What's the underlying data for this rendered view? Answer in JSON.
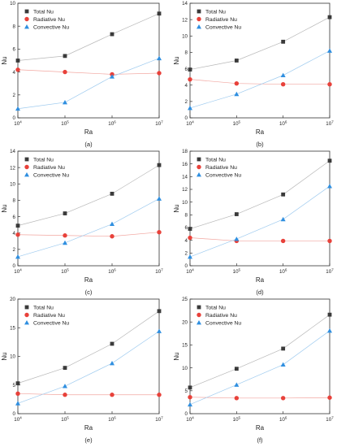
{
  "colors": {
    "total": "#3a3a3a",
    "radiative": "#e8413a",
    "convective": "#2f8fe0",
    "axis": "#333333",
    "guide_total": "#b8b8b8",
    "guide_radiative": "#f2a6a0",
    "guide_convective": "#9fcbef"
  },
  "chart_data": [
    {
      "type": "line",
      "panel_label": "(a)",
      "xlabel": "Ra",
      "ylabel": "Nu",
      "xscale": "log",
      "xlim": [
        10000,
        10000000
      ],
      "ylim": [
        0,
        10
      ],
      "xticks": [
        10000,
        100000,
        1000000,
        10000000
      ],
      "xticklabels": [
        {
          "b": "10",
          "e": "4"
        },
        {
          "b": "10",
          "e": "5"
        },
        {
          "b": "10",
          "e": "6"
        },
        {
          "b": "10",
          "e": "7"
        }
      ],
      "yticks": [
        0,
        2,
        4,
        6,
        8,
        10
      ],
      "x": [
        10000,
        100000,
        1000000,
        10000000
      ],
      "series": [
        {
          "name": "Total Nu",
          "values": [
            5.0,
            5.4,
            7.3,
            9.1
          ]
        },
        {
          "name": "Radiative Nu",
          "values": [
            4.2,
            4.0,
            3.8,
            3.9
          ]
        },
        {
          "name": "Convective Nu",
          "values": [
            0.8,
            1.35,
            3.6,
            5.2
          ]
        }
      ],
      "legend": "top-left"
    },
    {
      "type": "line",
      "panel_label": "(b)",
      "xlabel": "Ra",
      "ylabel": "Nu",
      "xscale": "log",
      "xlim": [
        10000,
        10000000
      ],
      "ylim": [
        0,
        14
      ],
      "xticks": [
        10000,
        100000,
        1000000,
        10000000
      ],
      "xticklabels": [
        {
          "b": "10",
          "e": "4"
        },
        {
          "b": "10",
          "e": "5"
        },
        {
          "b": "10",
          "e": "6"
        },
        {
          "b": "10",
          "e": "7"
        }
      ],
      "yticks": [
        0,
        2,
        4,
        6,
        8,
        10,
        12,
        14
      ],
      "x": [
        10000,
        100000,
        1000000,
        10000000
      ],
      "series": [
        {
          "name": "Total Nu",
          "values": [
            5.9,
            7.0,
            9.3,
            12.3
          ]
        },
        {
          "name": "Radiative Nu",
          "values": [
            4.7,
            4.2,
            4.1,
            4.1
          ]
        },
        {
          "name": "Convective Nu",
          "values": [
            1.2,
            2.9,
            5.2,
            8.2
          ]
        }
      ],
      "legend": "top-left"
    },
    {
      "type": "line",
      "panel_label": "(c)",
      "xlabel": "Ra",
      "ylabel": "Nu",
      "xscale": "log",
      "xlim": [
        10000,
        10000000
      ],
      "ylim": [
        0,
        14
      ],
      "xticks": [
        10000,
        100000,
        1000000,
        10000000
      ],
      "xticklabels": [
        {
          "b": "10",
          "e": "4"
        },
        {
          "b": "10",
          "e": "5"
        },
        {
          "b": "10",
          "e": "6"
        },
        {
          "b": "10",
          "e": "7"
        }
      ],
      "yticks": [
        0,
        2,
        4,
        6,
        8,
        10,
        12,
        14
      ],
      "x": [
        10000,
        100000,
        1000000,
        10000000
      ],
      "series": [
        {
          "name": "Total Nu",
          "values": [
            4.9,
            6.4,
            8.8,
            12.3
          ]
        },
        {
          "name": "Radiative Nu",
          "values": [
            3.8,
            3.7,
            3.6,
            4.1
          ]
        },
        {
          "name": "Convective Nu",
          "values": [
            1.1,
            2.8,
            5.1,
            8.2
          ]
        }
      ],
      "legend": "top-left"
    },
    {
      "type": "line",
      "panel_label": "(d)",
      "xlabel": "Ra",
      "ylabel": "Nu",
      "xscale": "log",
      "xlim": [
        10000,
        10000000
      ],
      "ylim": [
        0,
        18
      ],
      "xticks": [
        10000,
        100000,
        1000000,
        10000000
      ],
      "xticklabels": [
        {
          "b": "10",
          "e": "4"
        },
        {
          "b": "10",
          "e": "5"
        },
        {
          "b": "10",
          "e": "6"
        },
        {
          "b": "10",
          "e": "7"
        }
      ],
      "yticks": [
        0,
        2,
        4,
        6,
        8,
        10,
        12,
        14,
        16,
        18
      ],
      "x": [
        10000,
        100000,
        1000000,
        10000000
      ],
      "series": [
        {
          "name": "Total Nu",
          "values": [
            5.8,
            8.1,
            11.2,
            16.5
          ]
        },
        {
          "name": "Radiative Nu",
          "values": [
            4.4,
            3.9,
            3.9,
            3.9
          ]
        },
        {
          "name": "Convective Nu",
          "values": [
            1.4,
            4.2,
            7.3,
            12.5
          ]
        }
      ],
      "legend": "top-left"
    },
    {
      "type": "line",
      "panel_label": "(e)",
      "xlabel": "Ra",
      "ylabel": "Nu",
      "xscale": "log",
      "xlim": [
        10000,
        10000000
      ],
      "ylim": [
        0,
        20
      ],
      "xticks": [
        10000,
        100000,
        1000000,
        10000000
      ],
      "xticklabels": [
        {
          "b": "10",
          "e": "4"
        },
        {
          "b": "10",
          "e": "5"
        },
        {
          "b": "10",
          "e": "6"
        },
        {
          "b": "10",
          "e": "7"
        }
      ],
      "yticks": [
        0,
        5,
        10,
        15,
        20
      ],
      "x": [
        10000,
        100000,
        1000000,
        10000000
      ],
      "series": [
        {
          "name": "Total Nu",
          "values": [
            5.3,
            8.0,
            12.2,
            17.9
          ]
        },
        {
          "name": "Radiative Nu",
          "values": [
            3.5,
            3.3,
            3.3,
            3.3
          ]
        },
        {
          "name": "Convective Nu",
          "values": [
            1.8,
            4.8,
            8.8,
            14.4
          ]
        }
      ],
      "legend": "top-left"
    },
    {
      "type": "line",
      "panel_label": "(f)",
      "xlabel": "Ra",
      "ylabel": "Nu",
      "xscale": "log",
      "xlim": [
        10000,
        10000000
      ],
      "ylim": [
        0,
        25
      ],
      "xticks": [
        10000,
        100000,
        1000000,
        10000000
      ],
      "xticklabels": [
        {
          "b": "10",
          "e": "4"
        },
        {
          "b": "10",
          "e": "5"
        },
        {
          "b": "10",
          "e": "6"
        },
        {
          "b": "10",
          "e": "7"
        }
      ],
      "yticks": [
        0,
        5,
        10,
        15,
        20,
        25
      ],
      "x": [
        10000,
        100000,
        1000000,
        10000000
      ],
      "series": [
        {
          "name": "Total Nu",
          "values": [
            5.7,
            9.8,
            14.2,
            21.6
          ]
        },
        {
          "name": "Radiative Nu",
          "values": [
            3.6,
            3.4,
            3.4,
            3.5
          ]
        },
        {
          "name": "Convective Nu",
          "values": [
            2.0,
            6.3,
            10.7,
            18.1
          ]
        }
      ],
      "legend": "top-left"
    }
  ]
}
